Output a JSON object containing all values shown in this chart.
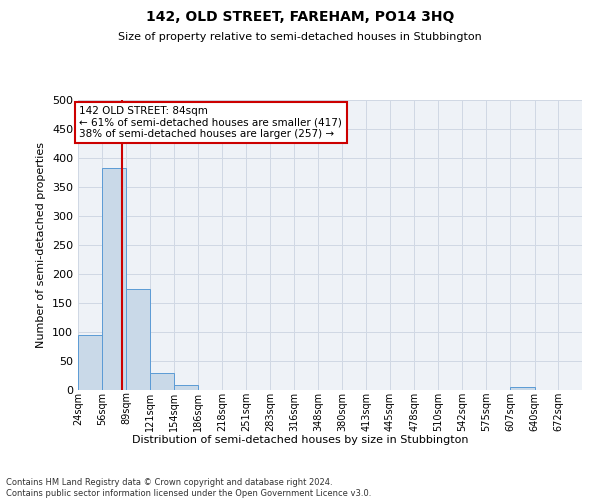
{
  "title": "142, OLD STREET, FAREHAM, PO14 3HQ",
  "subtitle": "Size of property relative to semi-detached houses in Stubbington",
  "xlabel": "Distribution of semi-detached houses by size in Stubbington",
  "ylabel": "Number of semi-detached properties",
  "footer_line1": "Contains HM Land Registry data © Crown copyright and database right 2024.",
  "footer_line2": "Contains public sector information licensed under the Open Government Licence v3.0.",
  "bin_edges": [
    24,
    56,
    89,
    121,
    154,
    186,
    218,
    251,
    283,
    316,
    348,
    380,
    413,
    445,
    478,
    510,
    542,
    575,
    607,
    640,
    672
  ],
  "bin_labels": [
    "24sqm",
    "56sqm",
    "89sqm",
    "121sqm",
    "154sqm",
    "186sqm",
    "218sqm",
    "251sqm",
    "283sqm",
    "316sqm",
    "348sqm",
    "380sqm",
    "413sqm",
    "445sqm",
    "478sqm",
    "510sqm",
    "542sqm",
    "575sqm",
    "607sqm",
    "640sqm",
    "672sqm"
  ],
  "bar_heights": [
    95,
    383,
    174,
    30,
    9,
    0,
    0,
    0,
    0,
    0,
    0,
    0,
    0,
    0,
    0,
    0,
    0,
    0,
    5,
    0,
    0
  ],
  "bar_color": "#c9d9e8",
  "bar_edge_color": "#5b9bd5",
  "property_sqm": 84,
  "property_label": "142 OLD STREET: 84sqm",
  "pct_smaller": 61,
  "count_smaller": 417,
  "pct_larger": 38,
  "count_larger": 257,
  "vline_color": "#cc0000",
  "annotation_box_color": "#cc0000",
  "ylim": [
    0,
    500
  ],
  "yticks": [
    0,
    50,
    100,
    150,
    200,
    250,
    300,
    350,
    400,
    450,
    500
  ],
  "grid_color": "#d0d8e4",
  "bg_color": "#eef2f7",
  "fig_width": 6.0,
  "fig_height": 5.0,
  "dpi": 100
}
